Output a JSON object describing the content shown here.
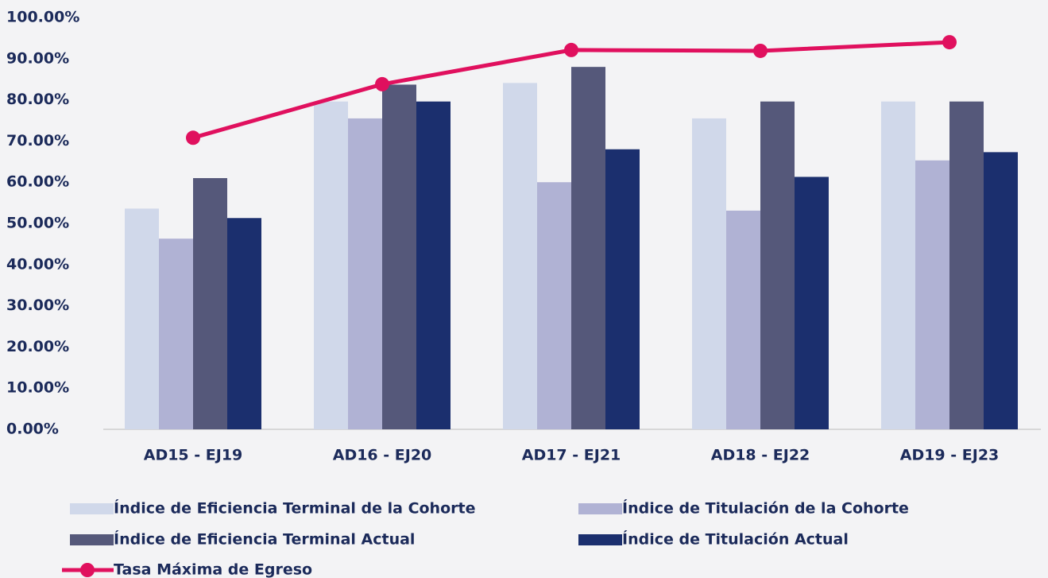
{
  "chart_data": {
    "type": "bar",
    "categories": [
      "AD15 - EJ19",
      "AD16 - EJ20",
      "AD17 - EJ21",
      "AD18 - EJ22",
      "AD19 - EJ23"
    ],
    "series": [
      {
        "name": "Índice de Eficiencia Terminal de la Cohorte",
        "color": "#d0d8ea",
        "values": [
          53.6,
          79.6,
          84.1,
          75.5,
          79.6
        ]
      },
      {
        "name": "Índice de Titulación de la Cohorte",
        "color": "#b0b2d4",
        "values": [
          46.3,
          75.5,
          60.0,
          53.1,
          65.3
        ]
      },
      {
        "name": "Índice de Eficiencia Terminal Actual",
        "color": "#55587a",
        "values": [
          61.0,
          83.7,
          88.0,
          79.6,
          79.6
        ]
      },
      {
        "name": "Índice de Titulación Actual",
        "color": "#1b2f6e",
        "values": [
          51.3,
          79.6,
          68.0,
          61.3,
          67.3
        ]
      },
      {
        "name": "Tasa Máxima de Egreso",
        "color": "#e0105e",
        "type": "line",
        "values": [
          70.8,
          83.8,
          92.1,
          91.9,
          94.0
        ]
      }
    ],
    "ylim": [
      0,
      100
    ],
    "yticks": [
      {
        "value": 0,
        "label": "0.00%"
      },
      {
        "value": 10,
        "label": "10.00%"
      },
      {
        "value": 20,
        "label": "20.00%"
      },
      {
        "value": 30,
        "label": "30.00%"
      },
      {
        "value": 40,
        "label": "40.00%"
      },
      {
        "value": 50,
        "label": "50.00%"
      },
      {
        "value": 60,
        "label": "60.00%"
      },
      {
        "value": 70,
        "label": "70.00%"
      },
      {
        "value": 80,
        "label": "80.00%"
      },
      {
        "value": 90,
        "label": "90.00%"
      },
      {
        "value": 100,
        "label": "100.00%"
      }
    ],
    "legend": "bottom"
  }
}
